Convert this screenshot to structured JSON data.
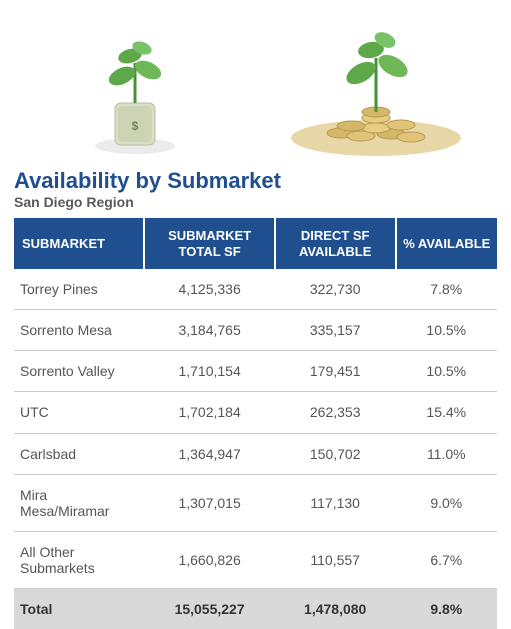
{
  "title": "Availability by Submarket",
  "subtitle": "San Diego Region",
  "styling": {
    "title_color": "#1f4f8f",
    "title_fontsize": 22,
    "subtitle_color": "#5a5a5a",
    "subtitle_fontsize": 14,
    "header_bg": "#1f4f8f",
    "header_text_color": "#ffffff",
    "row_text_color": "#555555",
    "row_border_color": "#cccccc",
    "total_row_bg": "#d9d9d9",
    "font_family": "Arial",
    "body_fontsize": 14
  },
  "table": {
    "columns": [
      {
        "label": "SUBMARKET",
        "align": "left"
      },
      {
        "label": "SUBMARKET TOTAL SF",
        "align": "center"
      },
      {
        "label": "DIRECT SF AVAILABLE",
        "align": "center"
      },
      {
        "label": "% AVAILABLE",
        "align": "center"
      }
    ],
    "rows": [
      {
        "submarket": "Torrey Pines",
        "total_sf": "4,125,336",
        "direct_sf": "322,730",
        "pct": "7.8%"
      },
      {
        "submarket": "Sorrento Mesa",
        "total_sf": "3,184,765",
        "direct_sf": "335,157",
        "pct": "10.5%"
      },
      {
        "submarket": "Sorrento Valley",
        "total_sf": "1,710,154",
        "direct_sf": "179,451",
        "pct": "10.5%"
      },
      {
        "submarket": "UTC",
        "total_sf": "1,702,184",
        "direct_sf": "262,353",
        "pct": "15.4%"
      },
      {
        "submarket": "Carlsbad",
        "total_sf": "1,364,947",
        "direct_sf": "150,702",
        "pct": "11.0%"
      },
      {
        "submarket": "Mira Mesa/Miramar",
        "total_sf": "1,307,015",
        "direct_sf": "117,130",
        "pct": "9.0%"
      },
      {
        "submarket": "All Other Submarkets",
        "total_sf": "1,660,826",
        "direct_sf": "110,557",
        "pct": "6.7%"
      }
    ],
    "total": {
      "submarket": "Total",
      "total_sf": "15,055,227",
      "direct_sf": "1,478,080",
      "pct": "9.8%"
    }
  },
  "images": {
    "left": "plant-growing-from-money-roll",
    "right": "plant-growing-from-coin-pile"
  }
}
